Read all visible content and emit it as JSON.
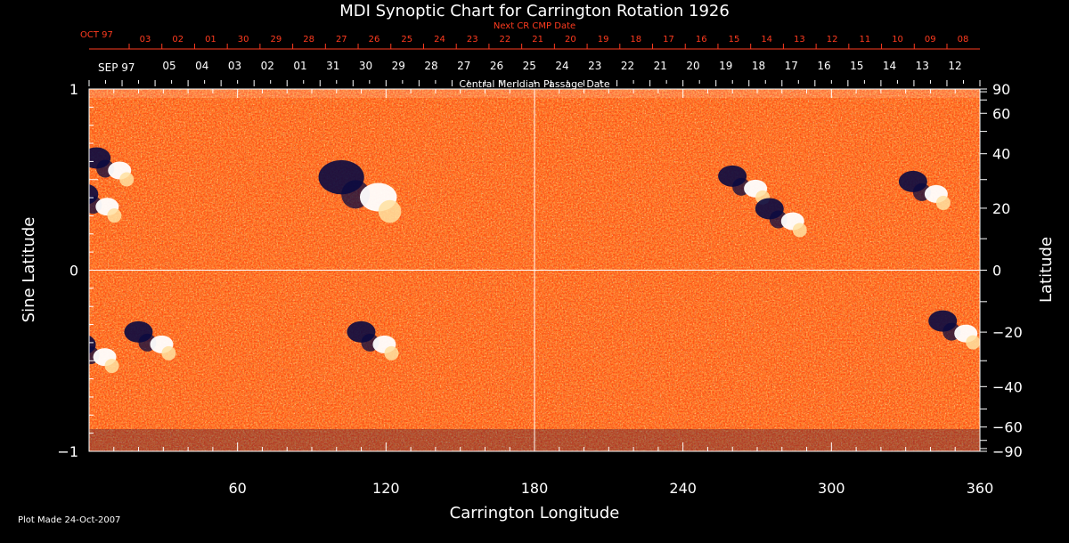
{
  "chart_data": {
    "type": "heatmap",
    "title": "MDI Synoptic Chart for Carrington Rotation 1926",
    "xlabel": "Carrington Longitude",
    "ylabel_left": "Sine Latitude",
    "ylabel_right": "Latitude",
    "xlim": [
      0,
      360
    ],
    "ylim": [
      -1,
      1
    ],
    "x_ticks": [
      60,
      120,
      180,
      240,
      300,
      360
    ],
    "y_ticks_left": [
      1,
      0,
      -1
    ],
    "y_ticks_right": [
      90,
      60,
      40,
      20,
      0,
      -20,
      -40,
      -60,
      -90
    ],
    "top_axis_label": "Central Meridian Passage Date",
    "top_axis_month": "SEP 97",
    "top_axis_dates": [
      "05",
      "04",
      "03",
      "02",
      "01",
      "31",
      "30",
      "29",
      "28",
      "27",
      "26",
      "25",
      "24",
      "23",
      "22",
      "21",
      "20",
      "19",
      "18",
      "17",
      "16",
      "15",
      "14",
      "13",
      "12"
    ],
    "next_axis_label": "Next CR CMP Date",
    "next_axis_month": "OCT 97",
    "next_axis_dates": [
      "03",
      "02",
      "01",
      "30",
      "29",
      "28",
      "27",
      "26",
      "25",
      "24",
      "23",
      "22",
      "21",
      "20",
      "19",
      "18",
      "17",
      "16",
      "15",
      "14",
      "13",
      "12",
      "11",
      "10",
      "09",
      "08"
    ],
    "palette": {
      "background": "#ff4a10",
      "positive": "#ffffff",
      "negative": "#0a0a40"
    },
    "active_regions": [
      {
        "lon": 8,
        "sinlat": 0.58,
        "type": "mixed"
      },
      {
        "lon": 3,
        "sinlat": 0.38,
        "type": "mixed"
      },
      {
        "lon": 110,
        "sinlat": 0.45,
        "type": "mixed"
      },
      {
        "lon": 265,
        "sinlat": 0.48,
        "type": "mixed"
      },
      {
        "lon": 280,
        "sinlat": 0.3,
        "type": "mixed"
      },
      {
        "lon": 338,
        "sinlat": 0.45,
        "type": "mixed"
      },
      {
        "lon": 25,
        "sinlat": -0.38,
        "type": "mixed"
      },
      {
        "lon": 115,
        "sinlat": -0.38,
        "type": "mixed"
      },
      {
        "lon": 2,
        "sinlat": -0.45,
        "type": "mixed"
      },
      {
        "lon": 350,
        "sinlat": -0.32,
        "type": "mixed"
      }
    ]
  },
  "footer": {
    "plot_made": "Plot Made 24-Oct-2007"
  }
}
